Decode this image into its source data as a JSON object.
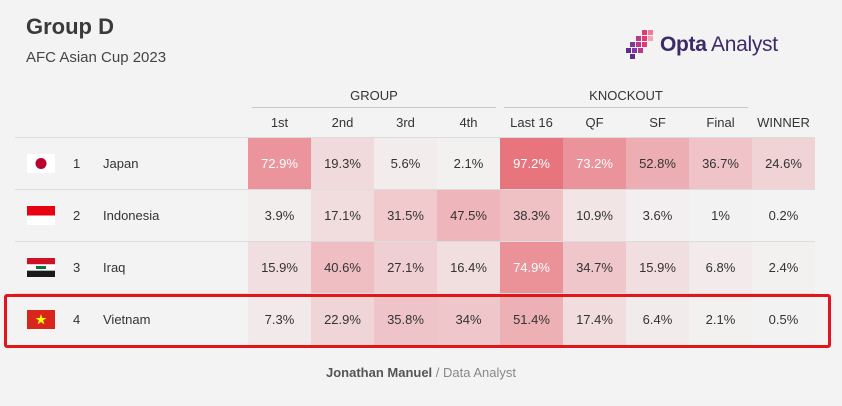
{
  "header": {
    "title": "Group D",
    "subtitle": "AFC Asian Cup 2023",
    "brand": {
      "bold": "Opta",
      "rest": " Analyst"
    }
  },
  "credit": {
    "author": "Jonathan Manuel",
    "separator": " / ",
    "role": "Data Analyst"
  },
  "colors": {
    "cell_base": "#f3f3f3",
    "cell_max": "#e8707a",
    "highlight": "#e0161b",
    "brand": "#3d2a6b"
  },
  "chart_data": {
    "type": "table",
    "groups": [
      {
        "label": "GROUP",
        "columns": [
          "1st",
          "2nd",
          "3rd",
          "4th"
        ]
      },
      {
        "label": "KNOCKOUT",
        "columns": [
          "Last 16",
          "QF",
          "SF",
          "Final"
        ]
      }
    ],
    "columns": [
      "1st",
      "2nd",
      "3rd",
      "4th",
      "Last 16",
      "QF",
      "SF",
      "Final",
      "WINNER"
    ],
    "rows": [
      {
        "rank": "1",
        "team": "Japan",
        "flag": "japan-flag-icon",
        "values": [
          "72.9%",
          "19.3%",
          "5.6%",
          "2.1%",
          "97.2%",
          "73.2%",
          "52.8%",
          "36.7%",
          "24.6%"
        ],
        "numbers": [
          72.9,
          19.3,
          5.6,
          2.1,
          97.2,
          73.2,
          52.8,
          36.7,
          24.6
        ]
      },
      {
        "rank": "2",
        "team": "Indonesia",
        "flag": "indonesia-flag-icon",
        "values": [
          "3.9%",
          "17.1%",
          "31.5%",
          "47.5%",
          "38.3%",
          "10.9%",
          "3.6%",
          "1%",
          "0.2%"
        ],
        "numbers": [
          3.9,
          17.1,
          31.5,
          47.5,
          38.3,
          10.9,
          3.6,
          1,
          0.2
        ]
      },
      {
        "rank": "3",
        "team": "Iraq",
        "flag": "iraq-flag-icon",
        "values": [
          "15.9%",
          "40.6%",
          "27.1%",
          "16.4%",
          "74.9%",
          "34.7%",
          "15.9%",
          "6.8%",
          "2.4%"
        ],
        "numbers": [
          15.9,
          40.6,
          27.1,
          16.4,
          74.9,
          34.7,
          15.9,
          6.8,
          2.4
        ]
      },
      {
        "rank": "4",
        "team": "Vietnam",
        "flag": "vietnam-flag-icon",
        "highlighted": true,
        "values": [
          "7.3%",
          "22.9%",
          "35.8%",
          "34%",
          "51.4%",
          "17.4%",
          "6.4%",
          "2.1%",
          "0.5%"
        ],
        "numbers": [
          7.3,
          22.9,
          35.8,
          34,
          51.4,
          17.4,
          6.4,
          2.1,
          0.5
        ]
      }
    ]
  }
}
